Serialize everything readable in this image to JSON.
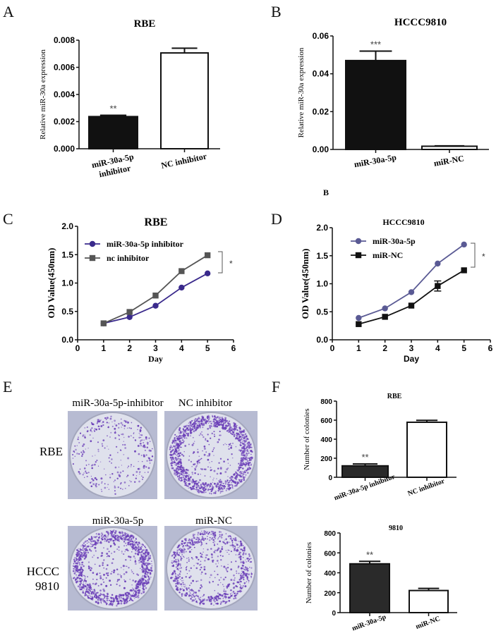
{
  "panel_labels": {
    "a": "A",
    "b": "B",
    "c": "C",
    "d": "D",
    "e": "E",
    "f": "F",
    "stray_b": "B"
  },
  "chart_data": [
    {
      "panel": "A",
      "type": "bar",
      "title": "RBE",
      "ylabel": "Relative miR-30a expression",
      "categories": [
        "miR-30a-5p inhibitor",
        "NC inhibitor"
      ],
      "values": [
        0.00237,
        0.00706
      ],
      "errors": [
        0.0001,
        0.00035
      ],
      "annotations": [
        "**",
        ""
      ],
      "colors": [
        "#111111",
        "#ffffff"
      ],
      "ylim": [
        0,
        0.008
      ],
      "yticks": [
        "0.000",
        "0.002",
        "0.004",
        "0.006",
        "0.008"
      ]
    },
    {
      "panel": "B",
      "type": "bar",
      "title": "HCCC9810",
      "ylabel": "Relative miR-30a expression",
      "categories": [
        "miR-30a-5p",
        "miR-NC"
      ],
      "values": [
        0.047,
        0.0017
      ],
      "errors": [
        0.005,
        0.0002
      ],
      "annotations": [
        "***",
        ""
      ],
      "colors": [
        "#111111",
        "#ffffff"
      ],
      "ylim": [
        0,
        0.06
      ],
      "yticks": [
        "0.00",
        "0.02",
        "0.04",
        "0.06"
      ]
    },
    {
      "panel": "C",
      "type": "line",
      "title": "RBE",
      "xlabel": "Day",
      "ylabel": "OD Value(450nm)",
      "x": [
        1,
        2,
        3,
        4,
        5
      ],
      "xlim": [
        0,
        6
      ],
      "xticks": [
        "0",
        "1",
        "2",
        "3",
        "4",
        "5",
        "6"
      ],
      "ylim": [
        0,
        2
      ],
      "yticks": [
        "0.0",
        "0.5",
        "1.0",
        "1.5",
        "2.0"
      ],
      "legend": "top-left",
      "series": [
        {
          "name": "miR-30a-5p inhibitor",
          "values": [
            0.29,
            0.4,
            0.6,
            0.92,
            1.17
          ],
          "marker": "circle",
          "color": "#3a2a8c"
        },
        {
          "name": "nc inhibitor",
          "values": [
            0.29,
            0.49,
            0.78,
            1.21,
            1.49
          ],
          "marker": "square",
          "color": "#555555"
        }
      ],
      "significance": "*"
    },
    {
      "panel": "D",
      "type": "line",
      "title": "HCCC9810",
      "xlabel": "Day",
      "ylabel": "OD Value(450nm)",
      "x": [
        1,
        2,
        3,
        4,
        5
      ],
      "xlim": [
        0,
        6
      ],
      "xticks": [
        "0",
        "1",
        "2",
        "3",
        "4",
        "5",
        "6"
      ],
      "ylim": [
        0,
        2
      ],
      "yticks": [
        "0.0",
        "0.5",
        "1.0",
        "1.5",
        "2.0"
      ],
      "legend": "top-left",
      "series": [
        {
          "name": "miR-30a-5p",
          "values": [
            0.39,
            0.56,
            0.85,
            1.36,
            1.7
          ],
          "marker": "circle",
          "color": "#5a5a94"
        },
        {
          "name": "miR-NC",
          "values": [
            0.28,
            0.41,
            0.61,
            0.96,
            1.24
          ],
          "errors": [
            0,
            0,
            0,
            0.09,
            0
          ],
          "marker": "square",
          "color": "#111111"
        }
      ],
      "significance": "*"
    },
    {
      "panel": "F",
      "type": "bar",
      "title": "RBE",
      "ylabel": "Number of colonies",
      "categories": [
        "miR-30a-5p inhibitor",
        "NC inhibitor"
      ],
      "values": [
        120,
        578
      ],
      "errors": [
        20,
        20
      ],
      "annotations": [
        "**",
        ""
      ],
      "colors": [
        "#2a2a2a",
        "#ffffff"
      ],
      "ylim": [
        0,
        800
      ],
      "yticks": [
        "0",
        "200",
        "400",
        "600",
        "800"
      ]
    },
    {
      "panel": "F",
      "type": "bar",
      "title": "9810",
      "ylabel": "Number of colonies",
      "categories": [
        "miR-30a-5p",
        "miR-NC"
      ],
      "values": [
        490,
        222
      ],
      "errors": [
        25,
        21
      ],
      "annotations": [
        "**",
        ""
      ],
      "colors": [
        "#2a2a2a",
        "#ffffff"
      ],
      "ylim": [
        0,
        800
      ],
      "yticks": [
        "0",
        "200",
        "400",
        "600",
        "800"
      ]
    }
  ],
  "colony_plates": {
    "rows": [
      {
        "label": "RBE",
        "columns": [
          "miR-30a-5p-inhibitor",
          "NC inhibitor"
        ]
      },
      {
        "label_line1": "HCCC",
        "label_line2": "9810",
        "columns": [
          "miR-30a-5p",
          "miR-NC"
        ]
      }
    ],
    "stain_color": "#6b3fb8"
  }
}
